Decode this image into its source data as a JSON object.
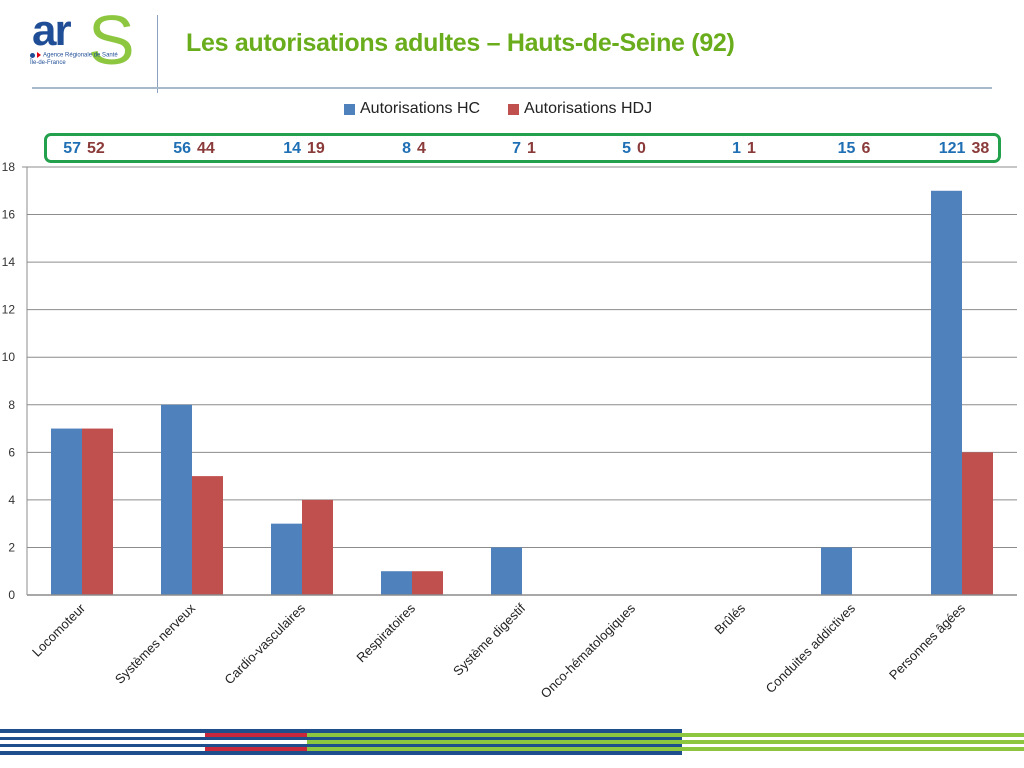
{
  "header": {
    "title": "Les autorisations adultes – Hauts-de-Seine (92)",
    "logo": {
      "mark_ar": "ar",
      "mark_s": "S",
      "line1": "Agence Régionale de Santé",
      "line2": "Île-de-France"
    }
  },
  "colors": {
    "hc": "#4f81bd",
    "hdj": "#c0504d",
    "title": "#6aad1c",
    "box_border": "#22a04b",
    "num_hc": "#1f6fb4",
    "num_hdj": "#8b3a3a",
    "footer_blue": "#1f4e8c",
    "footer_red": "#c8283c",
    "footer_green": "#8dc63f"
  },
  "totals_box": [
    {
      "hc": "57",
      "hdj": "52"
    },
    {
      "hc": "56",
      "hdj": "44"
    },
    {
      "hc": "14",
      "hdj": "19"
    },
    {
      "hc": "8",
      "hdj": "4"
    },
    {
      "hc": "7",
      "hdj": "1"
    },
    {
      "hc": "5",
      "hdj": "0"
    },
    {
      "hc": "1",
      "hdj": "1"
    },
    {
      "hc": "15",
      "hdj": "6"
    },
    {
      "hc": "121",
      "hdj": "38"
    }
  ],
  "chart_data": {
    "type": "bar",
    "title": "",
    "xlabel": "",
    "ylabel": "",
    "ylim": [
      0,
      18
    ],
    "yticks": [
      0,
      2,
      4,
      6,
      8,
      10,
      12,
      14,
      16,
      18
    ],
    "grid": true,
    "legend_position": "top-center",
    "categories": [
      "Locomoteur",
      "Systèmes nerveux",
      "Cardio-vasculaires",
      "Respiratoires",
      "Système digestif",
      "Onco-hématologiques",
      "Brûlés",
      "Conduites addictives",
      "Personnes âgées"
    ],
    "series": [
      {
        "name": "Autorisations HC",
        "values": [
          7,
          8,
          3,
          1,
          2,
          0,
          0,
          2,
          17
        ]
      },
      {
        "name": "Autorisations HDJ",
        "values": [
          7,
          5,
          4,
          1,
          0,
          0,
          0,
          0,
          6
        ]
      }
    ]
  }
}
